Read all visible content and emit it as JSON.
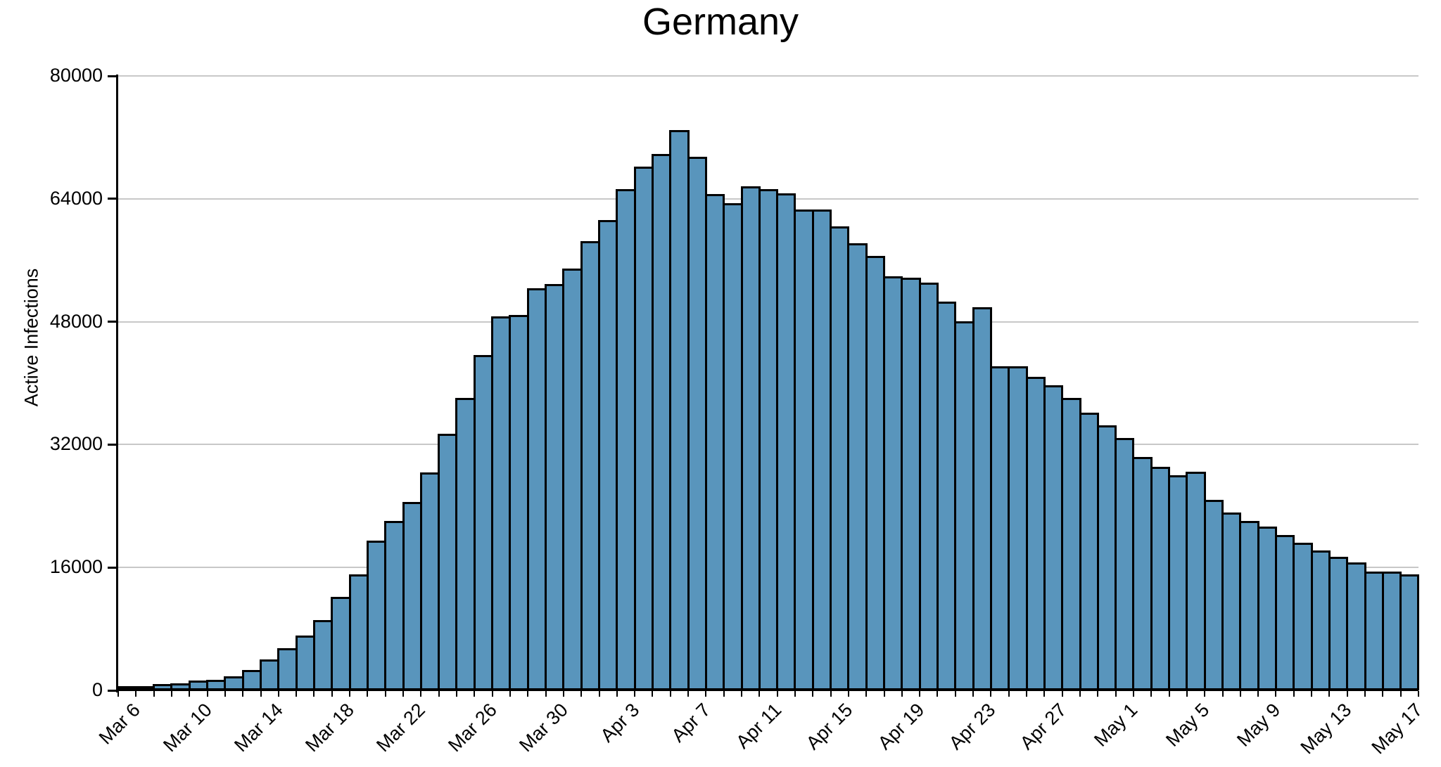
{
  "chart_data": {
    "type": "bar",
    "title": "Germany",
    "ylabel": "Active Infections",
    "xlabel": "",
    "ylim": [
      0,
      80000
    ],
    "y_ticks": [
      0,
      16000,
      32000,
      48000,
      64000,
      80000
    ],
    "x_tick_labels": [
      "Mar 6",
      "Mar 10",
      "Mar 14",
      "Mar 18",
      "Mar 22",
      "Mar 26",
      "Mar 30",
      "Apr 3",
      "Apr 7",
      "Apr 11",
      "Apr 15",
      "Apr 19",
      "Apr 23",
      "Apr 27",
      "May 1",
      "May 5",
      "May 9",
      "May 13",
      "May 17"
    ],
    "x_label_every_n_bars": 4,
    "grid": "horizontal",
    "legend_position": "none",
    "colors": {
      "bar_fill": "#5995BC",
      "bar_border": "#000000",
      "gridline": "#C8C8C8",
      "axis": "#000000",
      "background": "#FFFFFF",
      "text": "#000000"
    },
    "categories": [
      "Mar 6",
      "Mar 7",
      "Mar 8",
      "Mar 9",
      "Mar 10",
      "Mar 11",
      "Mar 12",
      "Mar 13",
      "Mar 14",
      "Mar 15",
      "Mar 16",
      "Mar 17",
      "Mar 18",
      "Mar 19",
      "Mar 20",
      "Mar 21",
      "Mar 22",
      "Mar 23",
      "Mar 24",
      "Mar 25",
      "Mar 26",
      "Mar 27",
      "Mar 28",
      "Mar 29",
      "Mar 30",
      "Mar 31",
      "Apr 1",
      "Apr 2",
      "Apr 3",
      "Apr 4",
      "Apr 5",
      "Apr 6",
      "Apr 7",
      "Apr 8",
      "Apr 9",
      "Apr 10",
      "Apr 11",
      "Apr 12",
      "Apr 13",
      "Apr 14",
      "Apr 15",
      "Apr 16",
      "Apr 17",
      "Apr 18",
      "Apr 19",
      "Apr 20",
      "Apr 21",
      "Apr 22",
      "Apr 23",
      "Apr 24",
      "Apr 25",
      "Apr 26",
      "Apr 27",
      "Apr 28",
      "Apr 29",
      "Apr 30",
      "May 1",
      "May 2",
      "May 3",
      "May 4",
      "May 5",
      "May 6",
      "May 7",
      "May 8",
      "May 9",
      "May 10",
      "May 11",
      "May 12",
      "May 13",
      "May 14",
      "May 15",
      "May 16",
      "May 17"
    ],
    "values": [
      550,
      500,
      850,
      900,
      1300,
      1350,
      1850,
      2700,
      4000,
      5500,
      7100,
      9200,
      12200,
      15100,
      19500,
      22100,
      24500,
      28400,
      33400,
      38100,
      43700,
      48700,
      48900,
      52400,
      52900,
      54900,
      58500,
      61200,
      65250,
      68200,
      69850,
      72950,
      69500,
      64650,
      63450,
      65600,
      65250,
      64700,
      62600,
      62600,
      60450,
      58250,
      56550,
      53900,
      53750,
      53050,
      50600,
      48100,
      49900,
      42200,
      42200,
      40800,
      39700,
      38100,
      36150,
      34500,
      32850,
      30400,
      29150,
      28050,
      28500,
      24850,
      23150,
      22050,
      21300,
      20200,
      19200,
      18200,
      17400,
      16700,
      15450,
      15450,
      15100
    ]
  }
}
